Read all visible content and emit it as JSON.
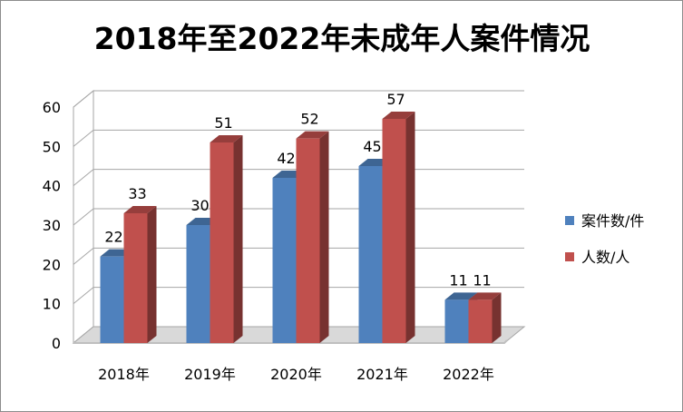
{
  "chart_data": {
    "type": "bar",
    "title": "2018年至2022年未成年人案件情况",
    "categories": [
      "2018年",
      "2019年",
      "2020年",
      "2021年",
      "2022年"
    ],
    "series": [
      {
        "name": "案件数/件",
        "values": [
          22,
          30,
          42,
          45,
          11
        ],
        "color": "#4f81bd"
      },
      {
        "name": "人数/人",
        "values": [
          33,
          51,
          52,
          57,
          11
        ],
        "color": "#c0504d"
      }
    ],
    "ylim": [
      0,
      60
    ],
    "yticks": [
      "0",
      "10",
      "20",
      "30",
      "40",
      "50",
      "60"
    ],
    "xlabel": "",
    "ylabel": "",
    "grid": true,
    "legend_position": "right",
    "style": "3d-clustered-column"
  }
}
